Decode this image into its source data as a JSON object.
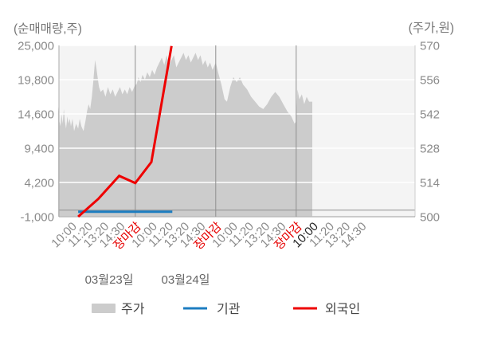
{
  "legend": [
    {
      "label": "주가",
      "type": "area",
      "color": "#cccccc"
    },
    {
      "label": "기관",
      "type": "line",
      "color": "#1d7dc0"
    },
    {
      "label": "외국인",
      "type": "line",
      "color": "#ee0000"
    }
  ],
  "chart_data": {
    "type": "combo-area-line",
    "title": "",
    "left_axis": {
      "label": "(순매매량,주)",
      "min": -1000,
      "max": 25000,
      "values": [
        25000,
        19800,
        14600,
        9400,
        4200,
        -1000
      ],
      "labels": [
        "25,000",
        "19,800",
        "14,600",
        "9,400",
        "4,200",
        "-1,000"
      ],
      "zero_line": 0
    },
    "right_axis": {
      "label": "(주가,원)",
      "min": 500,
      "max": 570,
      "values": [
        570,
        556,
        542,
        528,
        514,
        500
      ],
      "labels": [
        "570",
        "556",
        "542",
        "528",
        "514",
        "500"
      ]
    },
    "x_axis": {
      "ticks": [
        {
          "t": 0,
          "label": "10:00",
          "type": "normal"
        },
        {
          "t": 1,
          "label": "11:20",
          "type": "normal"
        },
        {
          "t": 2,
          "label": "13:20",
          "type": "normal"
        },
        {
          "t": 3,
          "label": "14:30",
          "type": "normal"
        },
        {
          "t": 4,
          "label": "장마감",
          "type": "close"
        },
        {
          "t": 5,
          "label": "10:00",
          "type": "normal"
        },
        {
          "t": 6,
          "label": "11:20",
          "type": "normal"
        },
        {
          "t": 7,
          "label": "13:20",
          "type": "normal"
        },
        {
          "t": 8,
          "label": "14:30",
          "type": "normal"
        },
        {
          "t": 9,
          "label": "장마감",
          "type": "close"
        },
        {
          "t": 10,
          "label": "10:00",
          "type": "normal"
        },
        {
          "t": 11,
          "label": "11:20",
          "type": "normal"
        },
        {
          "t": 12,
          "label": "13:20",
          "type": "normal"
        },
        {
          "t": 13,
          "label": "14:30",
          "type": "normal"
        },
        {
          "t": 14,
          "label": "장마감",
          "type": "close"
        },
        {
          "t": 15,
          "label": "10:00",
          "type": "current"
        },
        {
          "t": 16,
          "label": "11:20",
          "type": "normal"
        },
        {
          "t": 17,
          "label": "13:20",
          "type": "normal"
        },
        {
          "t": 18,
          "label": "14:30",
          "type": "normal"
        }
      ],
      "dates": [
        {
          "label": "03월23일",
          "center_t": 2.38
        },
        {
          "label": "03월24일",
          "center_t": 7.13
        }
      ]
    },
    "series": {
      "price": {
        "name": "주가",
        "type": "area",
        "axis": "right",
        "color": "#cccccc",
        "points": [
          [
            -0.79,
            545
          ],
          [
            -0.72,
            539
          ],
          [
            -0.65,
            537
          ],
          [
            -0.58,
            542
          ],
          [
            -0.51,
            538
          ],
          [
            -0.44,
            544
          ],
          [
            -0.37,
            539
          ],
          [
            -0.3,
            536
          ],
          [
            -0.22,
            541
          ],
          [
            -0.15,
            538
          ],
          [
            -0.07,
            540
          ],
          [
            0,
            537
          ],
          [
            0.1,
            540
          ],
          [
            0.2,
            535
          ],
          [
            0.32,
            538
          ],
          [
            0.45,
            536
          ],
          [
            0.55,
            540
          ],
          [
            0.65,
            537
          ],
          [
            0.78,
            535
          ],
          [
            0.9,
            539
          ],
          [
            1.0,
            543
          ],
          [
            1.1,
            546
          ],
          [
            1.2,
            544
          ],
          [
            1.3,
            549
          ],
          [
            1.4,
            556
          ],
          [
            1.5,
            564
          ],
          [
            1.58,
            561
          ],
          [
            1.66,
            557
          ],
          [
            1.75,
            553
          ],
          [
            1.85,
            551
          ],
          [
            2.0,
            552
          ],
          [
            2.15,
            549
          ],
          [
            2.3,
            553
          ],
          [
            2.45,
            550
          ],
          [
            2.6,
            552
          ],
          [
            2.75,
            549
          ],
          [
            2.9,
            551
          ],
          [
            3.05,
            553
          ],
          [
            3.2,
            550
          ],
          [
            3.35,
            552
          ],
          [
            3.5,
            550
          ],
          [
            3.65,
            553
          ],
          [
            3.8,
            551
          ],
          [
            4.0,
            554
          ],
          [
            4.08,
            554
          ],
          [
            4.2,
            557
          ],
          [
            4.32,
            555
          ],
          [
            4.45,
            558
          ],
          [
            4.6,
            556
          ],
          [
            4.75,
            559
          ],
          [
            4.9,
            557
          ],
          [
            5.05,
            560
          ],
          [
            5.2,
            558
          ],
          [
            5.35,
            561
          ],
          [
            5.5,
            563
          ],
          [
            5.65,
            565
          ],
          [
            5.8,
            562
          ],
          [
            5.95,
            566
          ],
          [
            6.1,
            562
          ],
          [
            6.25,
            564
          ],
          [
            6.4,
            566
          ],
          [
            6.55,
            561
          ],
          [
            6.7,
            563
          ],
          [
            6.85,
            565
          ],
          [
            7.0,
            567
          ],
          [
            7.15,
            564
          ],
          [
            7.3,
            566
          ],
          [
            7.45,
            563
          ],
          [
            7.6,
            565
          ],
          [
            7.75,
            567
          ],
          [
            7.9,
            564
          ],
          [
            8.05,
            566
          ],
          [
            8.2,
            562
          ],
          [
            8.35,
            564
          ],
          [
            8.5,
            561
          ],
          [
            8.65,
            563
          ],
          [
            8.8,
            560
          ],
          [
            9.0,
            563
          ],
          [
            9.15,
            559
          ],
          [
            9.35,
            554
          ],
          [
            9.55,
            548
          ],
          [
            9.7,
            547
          ],
          [
            9.9,
            553
          ],
          [
            10.1,
            557
          ],
          [
            10.3,
            555
          ],
          [
            10.5,
            557
          ],
          [
            10.7,
            554
          ],
          [
            10.95,
            552
          ],
          [
            11.2,
            549
          ],
          [
            11.45,
            547
          ],
          [
            11.7,
            545
          ],
          [
            11.95,
            544
          ],
          [
            12.2,
            546
          ],
          [
            12.45,
            549
          ],
          [
            12.7,
            551
          ],
          [
            12.95,
            549
          ],
          [
            13.2,
            546
          ],
          [
            13.45,
            543
          ],
          [
            13.7,
            541
          ],
          [
            13.9,
            538
          ],
          [
            14.0,
            539
          ],
          [
            14.08,
            552
          ],
          [
            14.2,
            548
          ],
          [
            14.35,
            550
          ],
          [
            14.5,
            546
          ],
          [
            14.65,
            549
          ],
          [
            14.8,
            547
          ],
          [
            15.0,
            547
          ]
        ]
      },
      "institution": {
        "name": "기관",
        "type": "line",
        "axis": "left",
        "color": "#1d7dc0",
        "points": [
          [
            0.45,
            -250
          ],
          [
            6.3,
            -250
          ]
        ]
      },
      "foreign": {
        "name": "외국인",
        "type": "line",
        "axis": "left",
        "color": "#ee0000",
        "points": [
          [
            0.45,
            -1000
          ],
          [
            1.7,
            1700
          ],
          [
            3,
            5200
          ],
          [
            4,
            4100
          ],
          [
            5,
            7300
          ],
          [
            6.25,
            24900
          ]
        ]
      }
    },
    "colors": {
      "plot_background": "#f4f4f4",
      "horizontal_gridline": "#ffffff",
      "day_divider": "#8f8f8f",
      "zero_line": "#8f8f8f",
      "axis_line": "#aaaaaa",
      "tick_text": "#8a8a8a",
      "close_tick_text": "#e60000",
      "current_tick_text": "#222222",
      "date_text": "#666666",
      "title_text": "#777777",
      "legend_text": "#444444"
    }
  }
}
